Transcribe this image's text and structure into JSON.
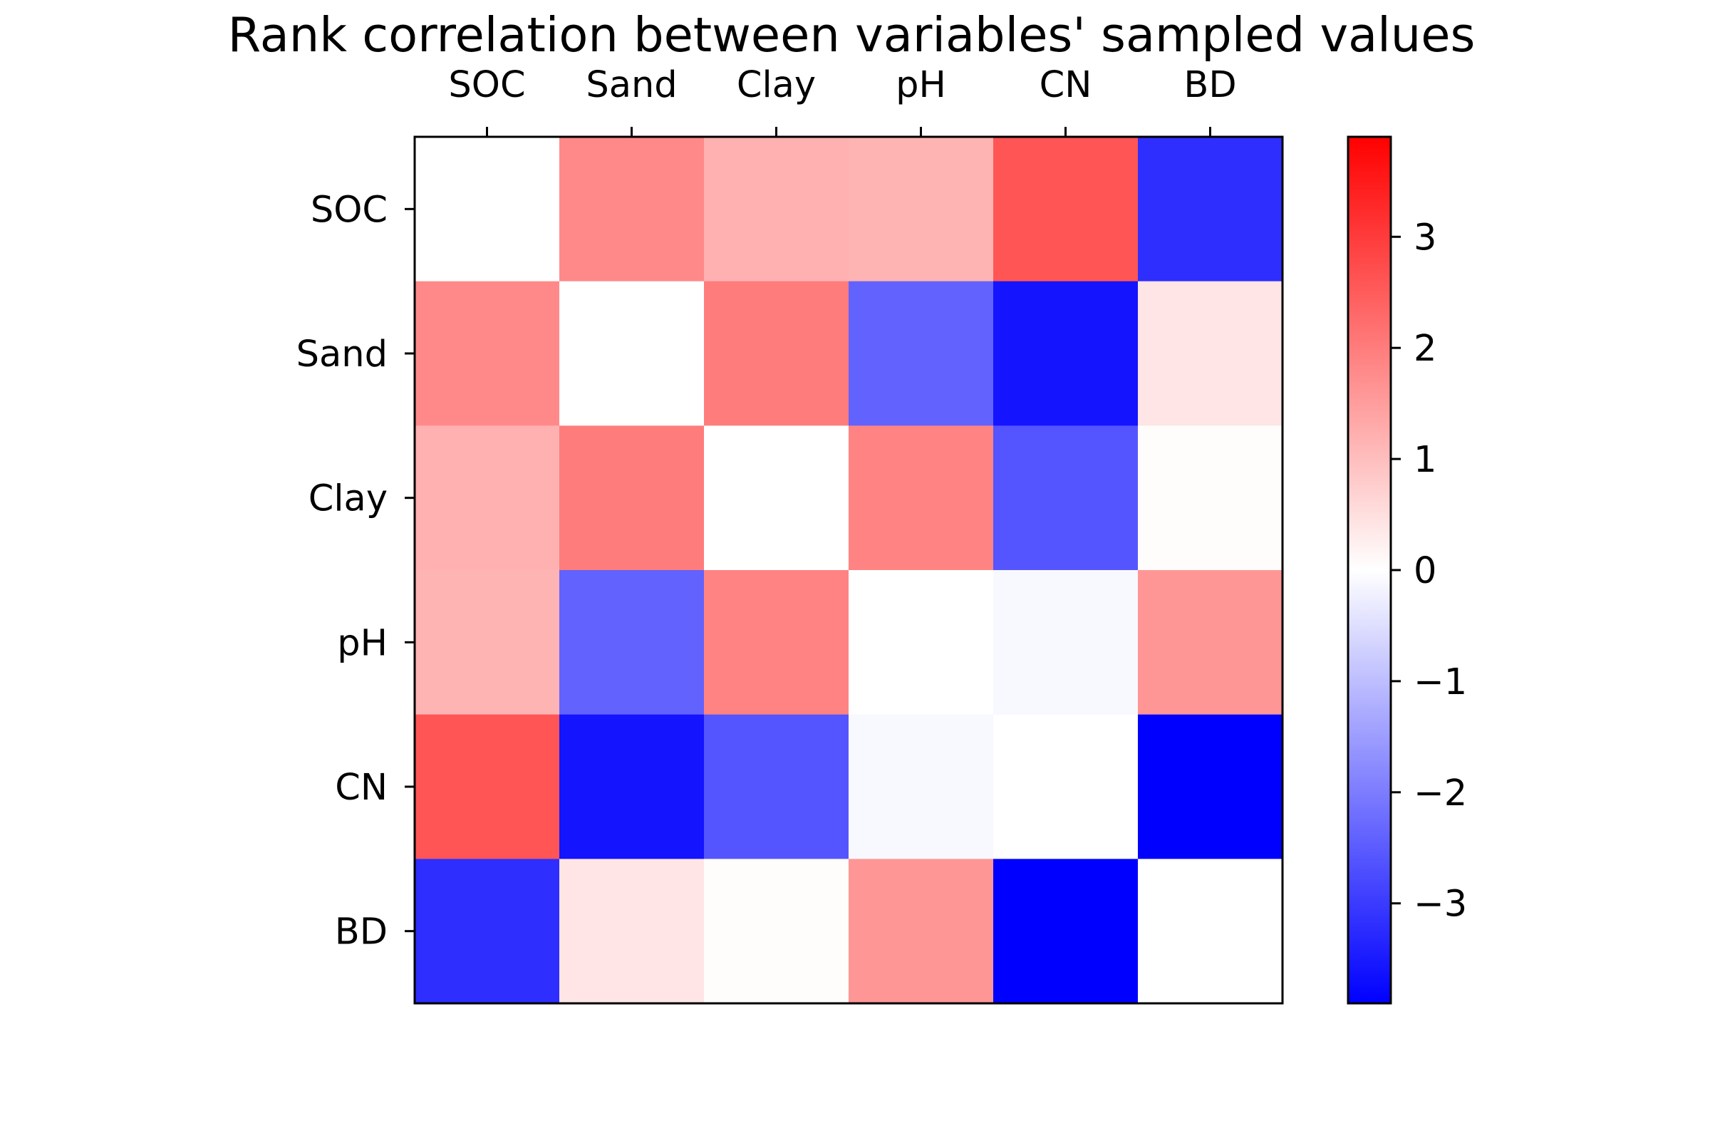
{
  "chart_data": {
    "type": "heatmap",
    "title": "Rank correlation between variables' sampled values",
    "x_labels": [
      "SOC",
      "Sand",
      "Clay",
      "pH",
      "CN",
      "BD"
    ],
    "y_labels": [
      "SOC",
      "Sand",
      "Clay",
      "pH",
      "CN",
      "BD"
    ],
    "matrix": [
      [
        0.0,
        1.8,
        1.2,
        1.15,
        2.6,
        -3.2
      ],
      [
        1.8,
        0.0,
        2.0,
        -2.4,
        -3.6,
        0.4
      ],
      [
        1.2,
        2.0,
        0.0,
        1.9,
        -2.6,
        0.05
      ],
      [
        1.15,
        -2.4,
        1.9,
        0.0,
        -0.1,
        1.6
      ],
      [
        2.6,
        -3.6,
        -2.6,
        -0.1,
        0.0,
        -3.9
      ],
      [
        -3.2,
        0.4,
        0.05,
        1.6,
        -3.9,
        0.0
      ]
    ],
    "colormap": "bwr",
    "color_low": "#0000ff",
    "color_mid": "#ffffff",
    "color_high": "#ff0000",
    "vlim": [
      -3.9,
      3.9
    ],
    "colorbar": {
      "ticks": [
        3,
        2,
        1,
        0,
        -1,
        -2,
        -3
      ],
      "tick_labels": [
        "3",
        "2",
        "1",
        "0",
        "−1",
        "−2",
        "−3"
      ]
    },
    "x_tick_position": "top",
    "grid": false
  }
}
